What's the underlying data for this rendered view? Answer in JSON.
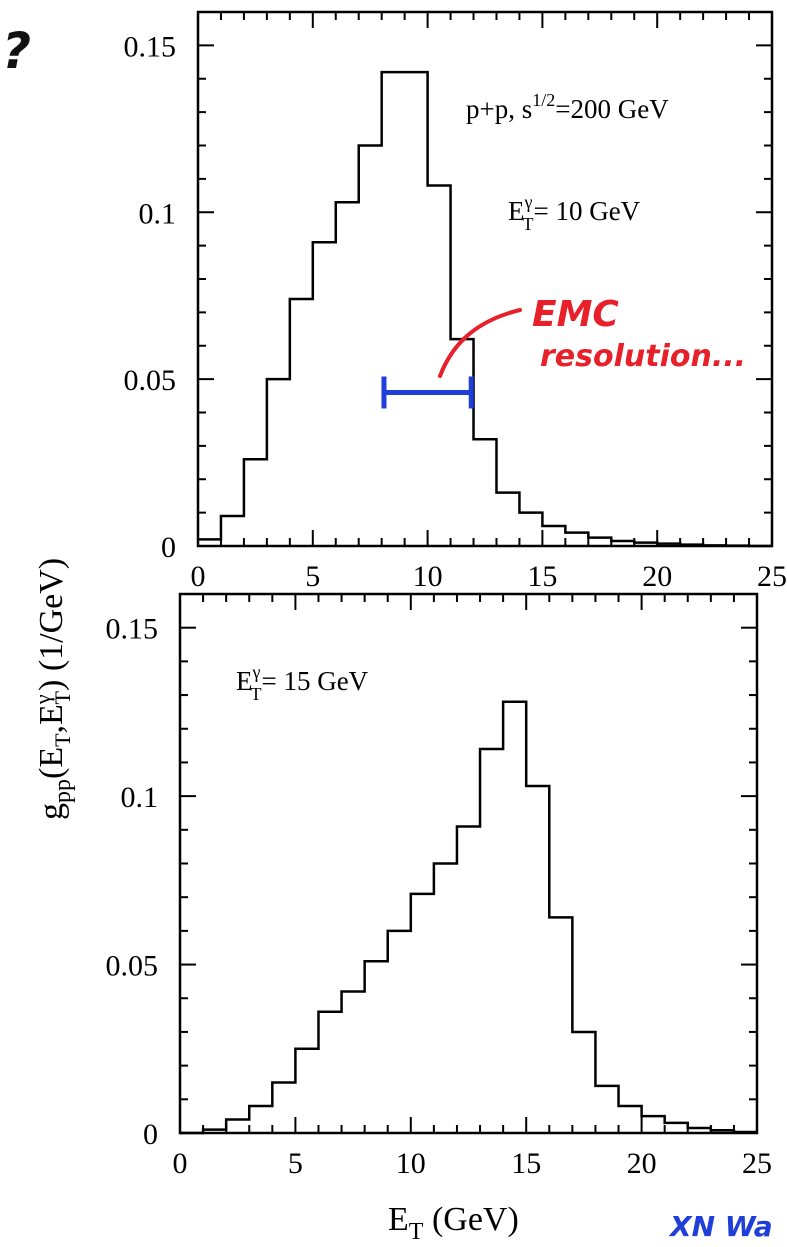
{
  "chart_data": [
    {
      "type": "histogram",
      "xlim": [
        0,
        25
      ],
      "ylim": [
        0,
        0.16
      ],
      "xticks": [
        "0",
        "5",
        "10",
        "15",
        "20",
        "25"
      ],
      "yticks": [
        "0",
        "0.05",
        "0.1",
        "0.15"
      ],
      "bin_edges": [
        0,
        1,
        2,
        3,
        4,
        5,
        6,
        7,
        8,
        9,
        10,
        11,
        12,
        13,
        14,
        15,
        16,
        17,
        18,
        19,
        20,
        21,
        22,
        23,
        24,
        25
      ],
      "values": [
        0.002,
        0.009,
        0.026,
        0.05,
        0.074,
        0.091,
        0.103,
        0.12,
        0.142,
        0.142,
        0.108,
        0.062,
        0.032,
        0.016,
        0.01,
        0.006,
        0.004,
        0.0025,
        0.0015,
        0.001,
        0.0007,
        0.0004,
        0.0002,
        0.0001,
        0.0
      ],
      "annotations": [
        {
          "text": "p+p, s",
          "sup": "1/2",
          "text2": "=200 GeV"
        },
        {
          "text": "E",
          "sup": "γ",
          "sub": "T",
          "text2": "= 10 GeV"
        }
      ],
      "error_bar": {
        "x_from": 8.1,
        "x_to": 11.9,
        "y": 0.046,
        "color": "#1f3fd8"
      },
      "handwritten_note": {
        "line1": "EMC",
        "line2": "resolution...",
        "color": "#e8202a"
      }
    },
    {
      "type": "histogram",
      "xlim": [
        0,
        25
      ],
      "ylim": [
        0,
        0.16
      ],
      "xticks": [
        "0",
        "5",
        "10",
        "15",
        "20",
        "25"
      ],
      "yticks": [
        "0",
        "0.05",
        "0.1",
        "0.15"
      ],
      "bin_edges": [
        0,
        1,
        2,
        3,
        4,
        5,
        6,
        7,
        8,
        9,
        10,
        11,
        12,
        13,
        14,
        15,
        16,
        17,
        18,
        19,
        20,
        21,
        22,
        23,
        24,
        25
      ],
      "values": [
        0.0,
        0.001,
        0.004,
        0.008,
        0.015,
        0.025,
        0.036,
        0.042,
        0.051,
        0.06,
        0.071,
        0.08,
        0.091,
        0.114,
        0.128,
        0.103,
        0.064,
        0.03,
        0.014,
        0.008,
        0.005,
        0.003,
        0.0015,
        0.0008,
        0.0003
      ],
      "annotations": [
        {
          "text": "E",
          "sup": "γ",
          "sub": "T",
          "text2": "= 15 GeV"
        }
      ]
    }
  ],
  "ylabel": {
    "main": "g",
    "sub1": "pp",
    "mid": "(E",
    "sub2": "T",
    "mid2": ",E",
    "sup3": "γ",
    "sub3": "T",
    "end": ") (1/GeV)"
  },
  "xlabel": {
    "main": "E",
    "sub": "T",
    "end": " (GeV)"
  },
  "page_marks": {
    "corner_mark": "?",
    "signature": "XN Wa"
  }
}
